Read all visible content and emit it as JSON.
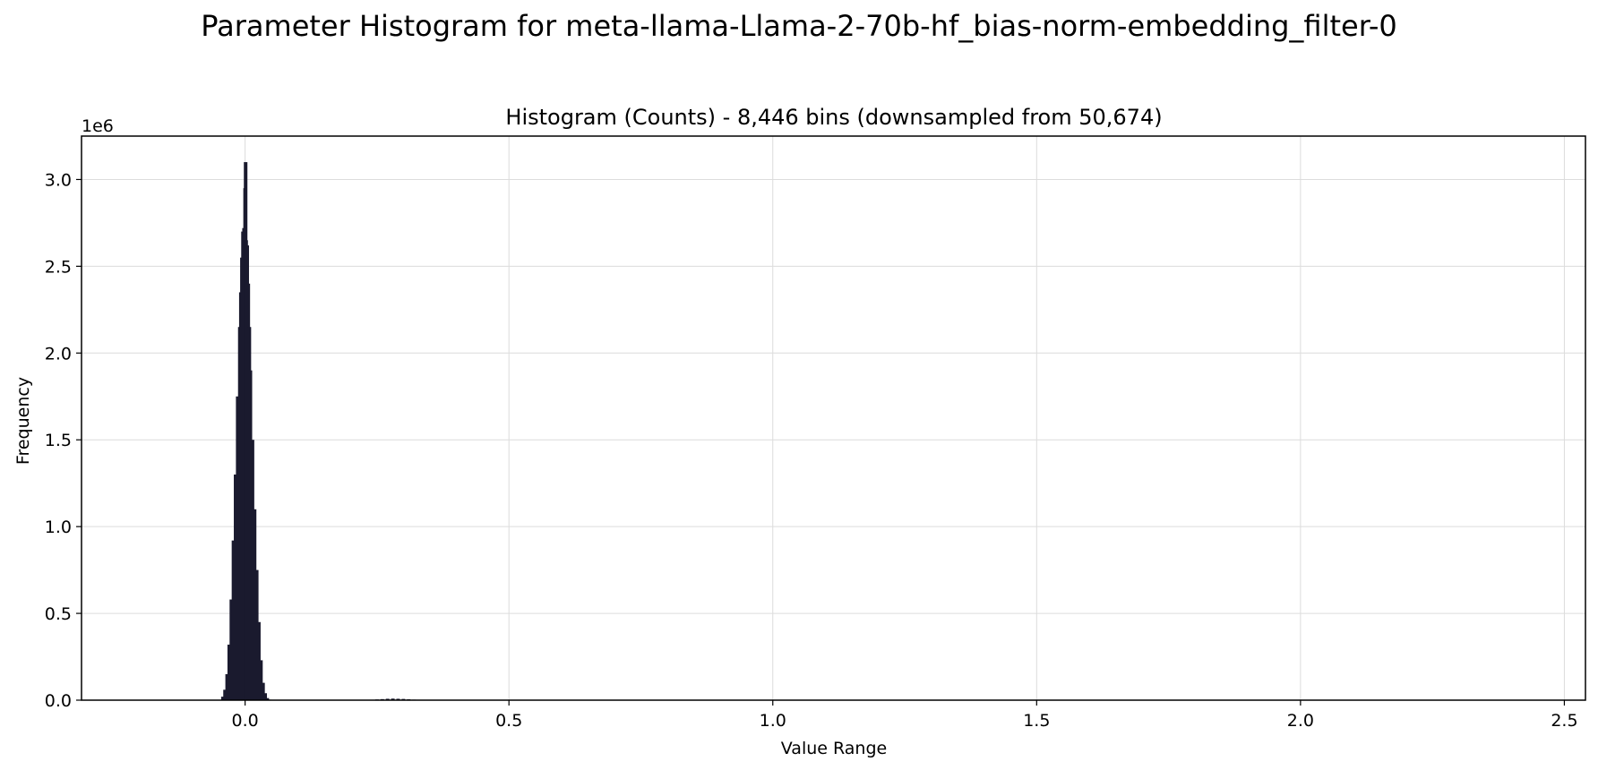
{
  "figure": {
    "suptitle": "Parameter Histogram for meta-llama-Llama-2-70b-hf_bias-norm-embedding_filter-0"
  },
  "chart_data": {
    "type": "bar",
    "title": "Histogram (Counts) - 8,446 bins (downsampled from 50,674)",
    "xlabel": "Value Range",
    "ylabel": "Frequency",
    "y_offset_text": "1e6",
    "xlim": [
      -0.31,
      2.54
    ],
    "ylim": [
      0,
      3250000
    ],
    "xticks": [
      0.0,
      0.5,
      1.0,
      1.5,
      2.0,
      2.5
    ],
    "xtick_labels": [
      "0.0",
      "0.5",
      "1.0",
      "1.5",
      "2.0",
      "2.5"
    ],
    "yticks": [
      0,
      500000,
      1000000,
      1500000,
      2000000,
      2500000,
      3000000
    ],
    "ytick_labels": [
      "0.0",
      "0.5",
      "1.0",
      "1.5",
      "2.0",
      "2.5",
      "3.0"
    ],
    "grid": true,
    "bar_color": "#1a1a2e",
    "series": [
      {
        "x": [
          -0.042,
          -0.038,
          -0.034,
          -0.03,
          -0.026,
          -0.022,
          -0.018,
          -0.014,
          -0.01,
          -0.008,
          -0.006,
          -0.004,
          -0.002,
          0.0,
          0.001,
          0.002,
          0.004,
          0.006,
          0.008,
          0.01,
          0.014,
          0.018,
          0.022,
          0.026,
          0.03,
          0.034,
          0.038,
          0.042,
          0.046,
          0.25,
          0.26,
          0.27,
          0.28,
          0.29,
          0.3,
          0.31,
          0.32
        ],
        "values": [
          20000,
          60000,
          150000,
          320000,
          580000,
          920000,
          1300000,
          1750000,
          2150000,
          2350000,
          2550000,
          2700000,
          2720000,
          2950000,
          3100000,
          2650000,
          2620000,
          2400000,
          2150000,
          1900000,
          1500000,
          1100000,
          750000,
          450000,
          230000,
          100000,
          40000,
          12000,
          3000,
          4000,
          6000,
          8000,
          9000,
          8000,
          7000,
          5000,
          3000
        ]
      }
    ]
  }
}
